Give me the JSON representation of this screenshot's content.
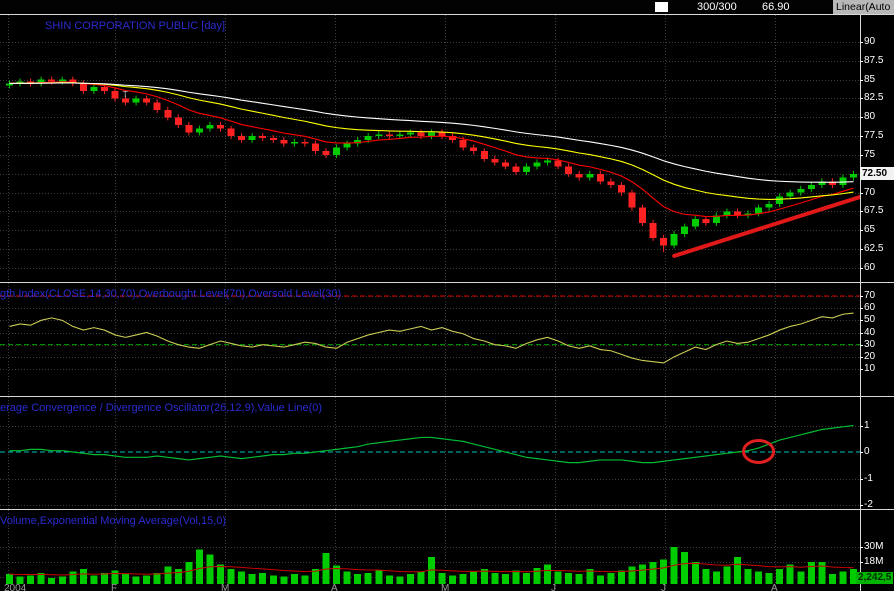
{
  "top_bar": {
    "counter": "300/300",
    "value": "66.90",
    "scale_mode": "Linear(Auto"
  },
  "colors": {
    "title_blue": "#2b2bd2",
    "axis_text": "#ffffff",
    "grid": "#3d3d3d",
    "candle_up": "#00cc00",
    "candle_down": "#ff2222",
    "ma_fast": "#ff0000",
    "ma_mid": "#ffff00",
    "ma_slow": "#ffffff",
    "rsi_line": "#cccc55",
    "macd_line": "#00bb33",
    "zero_line": "#00c0c0",
    "volume_bar": "#00cc00",
    "trendline_red": "#e01818"
  },
  "panels": {
    "price": {
      "title": "SHIN CORPORATION PUBLIC [day]",
      "price_tag": "72.50",
      "tick_values": [
        90,
        87.5,
        85,
        82.5,
        80,
        77.5,
        75,
        72.5,
        70,
        67.5,
        65,
        62.5,
        60
      ],
      "tick_labels": [
        "90",
        "87.5",
        "85",
        "82.5",
        "80",
        "77.5",
        "75",
        "72.5",
        "70",
        "67.5",
        "65",
        "62.5",
        "60"
      ]
    },
    "rsi": {
      "title": "gth Index(CLOSE,14,30,70),Overbought Level(70),Oversold Level(30)",
      "tick_values": [
        70,
        60,
        50,
        40,
        30,
        20,
        10
      ],
      "tick_labels": [
        "70",
        "60",
        "50",
        "40",
        "30",
        "20",
        "10"
      ]
    },
    "macd": {
      "title": "erage Convergence / Divergence Oscillator(26,12,9),Value Line(0)",
      "tick_values": [
        1,
        0,
        -1,
        -2
      ],
      "tick_labels": [
        "1",
        "0",
        "-1",
        "-2"
      ]
    },
    "volume": {
      "title": "Volume,Exponential Moving Average(Vol,15,0)",
      "last_value": "2,242,5",
      "tick_values": [
        30,
        18,
        6
      ],
      "tick_labels": [
        "30M",
        "18M",
        "6M"
      ]
    }
  },
  "x_axis_labels": [
    "2004",
    "F",
    "M",
    "A",
    "M",
    "J",
    "J",
    "A"
  ],
  "chart_data": [
    {
      "type": "candlestick",
      "title": "SHIN CORPORATION PUBLIC [day]",
      "ylim": [
        60,
        90
      ],
      "up_color": "#00cc00",
      "down_color": "#ff2222",
      "open": [
        84.25,
        84.5,
        84.75,
        84.5,
        85,
        84.75,
        85,
        84.5,
        83.5,
        84,
        83.5,
        82.5,
        82,
        82.5,
        82,
        81,
        80,
        79,
        78,
        78.5,
        79,
        78.5,
        77.5,
        77,
        77.5,
        77.25,
        77,
        76.5,
        76.75,
        76.5,
        75.5,
        75,
        76,
        76.5,
        77,
        77.5,
        77.75,
        77.5,
        77.75,
        78,
        77.5,
        78,
        77.5,
        77,
        76,
        75.5,
        74.5,
        74,
        73.5,
        72.75,
        73.5,
        74,
        74.25,
        73.5,
        72.5,
        72,
        72.5,
        71.5,
        71,
        70,
        68,
        66,
        64,
        63,
        64.5,
        65.5,
        66.5,
        66,
        67,
        67.5,
        67,
        67.25,
        68,
        68.5,
        69.5,
        70,
        70.5,
        71,
        71.5,
        71,
        72
      ],
      "high": [
        84.9,
        85.15,
        85.15,
        85.4,
        85.4,
        85.4,
        85.4,
        84.9,
        84.4,
        84.4,
        83.9,
        82.9,
        82.9,
        82.9,
        82.4,
        81.4,
        80.4,
        79.4,
        78.9,
        79.4,
        79.4,
        78.9,
        77.9,
        77.9,
        77.9,
        77.65,
        77.4,
        77.15,
        77.15,
        76.9,
        75.9,
        76.4,
        76.9,
        77.4,
        77.9,
        78.15,
        78.15,
        78.15,
        78.4,
        78.4,
        78.4,
        78.4,
        77.9,
        77.4,
        76.4,
        75.9,
        74.9,
        74.4,
        73.9,
        73.9,
        74.4,
        74.65,
        74.65,
        73.9,
        72.9,
        72.9,
        72.9,
        71.9,
        71.4,
        70.4,
        68.4,
        66.4,
        64.4,
        64.9,
        65.9,
        66.9,
        66.9,
        67.4,
        67.9,
        67.9,
        67.65,
        68.4,
        68.9,
        69.9,
        70.4,
        70.9,
        71.4,
        71.9,
        71.9,
        72.4,
        72.9
      ],
      "low": [
        83.85,
        84.1,
        84.1,
        84.1,
        84.35,
        84.35,
        84.1,
        83.1,
        83.1,
        83.1,
        82.1,
        81.6,
        81.6,
        81.6,
        80.6,
        79.6,
        78.6,
        77.6,
        77.6,
        78.1,
        78.1,
        77.1,
        76.6,
        76.6,
        76.85,
        76.6,
        76.1,
        76.1,
        76.1,
        75.1,
        74.6,
        74.6,
        75.6,
        76.1,
        76.6,
        77.1,
        77.1,
        77.1,
        77.35,
        77.1,
        77.1,
        77.1,
        76.6,
        75.6,
        75.1,
        74.1,
        73.6,
        73.1,
        72.35,
        72.35,
        73.1,
        73.6,
        73.1,
        72.1,
        71.6,
        71.6,
        71.1,
        70.6,
        69.6,
        67.6,
        65.6,
        63.6,
        62.1,
        62.6,
        64.1,
        65.1,
        65.6,
        65.6,
        66.6,
        66.6,
        66.6,
        66.85,
        67.6,
        68.1,
        69.1,
        69.6,
        70.1,
        70.6,
        70.6,
        70.6,
        71.6
      ],
      "close": [
        84.5,
        84.75,
        84.5,
        85,
        84.75,
        85,
        84.5,
        83.5,
        84,
        83.5,
        82.5,
        82,
        82.5,
        82,
        81,
        80,
        79,
        78,
        78.5,
        79,
        78.5,
        77.5,
        77,
        77.5,
        77.25,
        77,
        76.5,
        76.75,
        76.5,
        75.5,
        75,
        76,
        76.5,
        77,
        77.5,
        77.75,
        77.5,
        77.75,
        78,
        77.5,
        78,
        77.5,
        77,
        76,
        75.5,
        74.5,
        74,
        73.5,
        72.75,
        73.5,
        74,
        74.25,
        73.5,
        72.5,
        72,
        72.5,
        71.5,
        71,
        70,
        68,
        66,
        64,
        63,
        64.5,
        65.5,
        66.5,
        66,
        67,
        67.5,
        67,
        67.25,
        68,
        68.5,
        69.5,
        70,
        70.5,
        71,
        71.5,
        71,
        72,
        72.5
      ],
      "overlays": [
        {
          "name": "ema-fast",
          "period": 10,
          "color": "#ff0000"
        },
        {
          "name": "ema-mid",
          "period": 25,
          "color": "#ffff00"
        },
        {
          "name": "ema-slow",
          "period": 45,
          "color": "#ffffff"
        }
      ],
      "trendline": {
        "from_index": 63,
        "from_price": 61.6,
        "to_index": 81,
        "to_price": 69.6,
        "color": "#e01818",
        "width": 4
      },
      "annotations": [
        {
          "text": "T",
          "index": 11,
          "price": 82.6
        }
      ],
      "last_price_label": "72.50"
    },
    {
      "type": "line",
      "name": "Relative Strength Index",
      "ylim": [
        5,
        75
      ],
      "color": "#cccc55",
      "values": [
        45,
        47,
        46,
        50,
        52,
        50,
        45,
        42,
        44,
        42,
        38,
        36,
        38,
        40,
        37,
        33,
        30,
        28,
        27,
        30,
        33,
        31,
        29,
        28,
        30,
        29,
        28,
        30,
        32,
        31,
        28,
        27,
        32,
        35,
        38,
        40,
        42,
        41,
        43,
        45,
        42,
        44,
        41,
        39,
        35,
        33,
        30,
        29,
        27,
        31,
        34,
        36,
        33,
        29,
        27,
        29,
        26,
        25,
        22,
        19,
        17,
        16,
        15,
        20,
        24,
        28,
        26,
        30,
        33,
        31,
        32,
        35,
        38,
        42,
        45,
        47,
        50,
        53,
        52,
        55,
        56
      ],
      "levels": [
        {
          "value": 70,
          "color": "#dd0000",
          "style": "dashed",
          "label": "Overbought Level(70)"
        },
        {
          "value": 30,
          "color": "#00a000",
          "style": "dashed",
          "label": "Oversold Level(30)"
        }
      ]
    },
    {
      "type": "line",
      "name": "MACD Oscillator(26,12,9)",
      "ylim": [
        -2.2,
        1.3
      ],
      "color": "#00bb33",
      "values": [
        0.05,
        0.05,
        0.1,
        0.1,
        0.05,
        0.05,
        0,
        -0.05,
        -0.1,
        -0.1,
        -0.15,
        -0.2,
        -0.2,
        -0.2,
        -0.15,
        -0.2,
        -0.25,
        -0.3,
        -0.25,
        -0.2,
        -0.15,
        -0.2,
        -0.25,
        -0.2,
        -0.15,
        -0.1,
        -0.1,
        -0.05,
        -0.05,
        0,
        0.05,
        0.1,
        0.15,
        0.2,
        0.3,
        0.35,
        0.4,
        0.45,
        0.5,
        0.55,
        0.55,
        0.5,
        0.45,
        0.4,
        0.3,
        0.2,
        0.1,
        0,
        -0.1,
        -0.2,
        -0.25,
        -0.3,
        -0.35,
        -0.4,
        -0.4,
        -0.35,
        -0.3,
        -0.3,
        -0.3,
        -0.35,
        -0.4,
        -0.4,
        -0.35,
        -0.3,
        -0.25,
        -0.2,
        -0.15,
        -0.1,
        -0.05,
        0,
        0.05,
        0.15,
        0.3,
        0.45,
        0.55,
        0.65,
        0.75,
        0.85,
        0.9,
        0.95,
        1.0
      ],
      "levels": [
        {
          "value": 0,
          "color": "#00c0c0",
          "style": "dashed",
          "label": "Value Line(0)"
        }
      ],
      "annotation_circle": {
        "index": 71,
        "value": 0.02,
        "color": "#e02020"
      }
    },
    {
      "type": "bar",
      "name": "Volume (millions)",
      "color": "#00cc00",
      "values_millions": [
        8,
        6,
        7,
        9,
        5,
        6,
        10,
        12,
        7,
        9,
        11,
        8,
        6,
        7,
        9,
        14,
        12,
        18,
        28,
        24,
        16,
        12,
        10,
        8,
        9,
        7,
        6,
        8,
        7,
        12,
        25,
        15,
        10,
        8,
        9,
        11,
        7,
        6,
        8,
        10,
        22,
        9,
        7,
        8,
        10,
        12,
        9,
        8,
        11,
        9,
        13,
        16,
        10,
        9,
        8,
        12,
        7,
        9,
        11,
        14,
        16,
        18,
        20,
        30,
        26,
        18,
        12,
        10,
        14,
        22,
        12,
        10,
        9,
        12,
        16,
        10,
        18,
        18,
        8,
        10,
        12
      ],
      "ema": {
        "period": 15,
        "color": "#cc0000"
      },
      "last_value_label": "2,242,5"
    }
  ]
}
